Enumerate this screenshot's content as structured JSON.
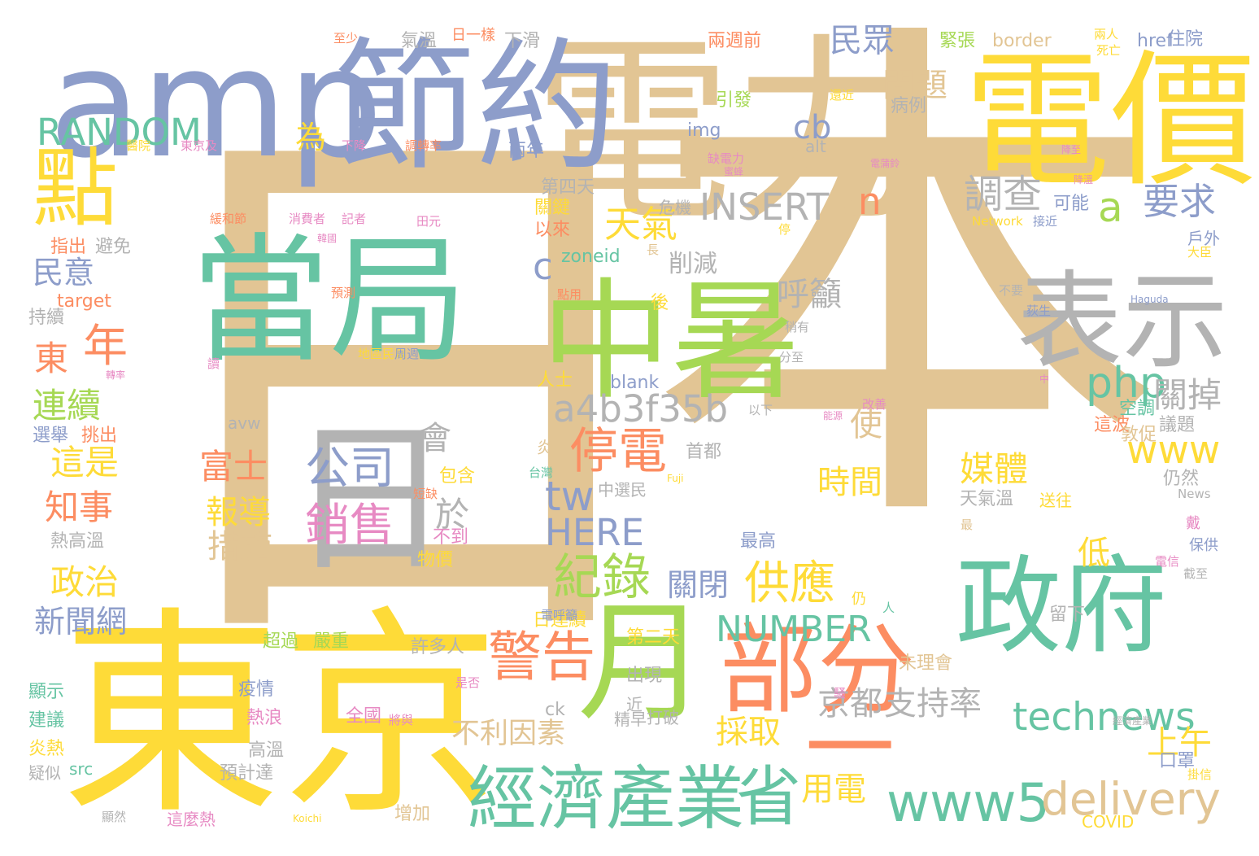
{
  "colors": {
    "tan": "#e2c594",
    "yellow": "#fedb38",
    "periwinkle": "#8d9dca",
    "teal": "#66c4a3",
    "lime": "#a6d854",
    "gray": "#b3b3b3",
    "coral": "#fc8d62",
    "pink": "#e78ac3"
  },
  "words": [
    {
      "text": "日",
      "color": "tan"
    },
    {
      "text": "本",
      "color": "tan"
    },
    {
      "text": "東京",
      "color": "yellow"
    },
    {
      "text": "電力",
      "color": "tan"
    },
    {
      "text": "amp",
      "color": "periwinkle"
    },
    {
      "text": "電價",
      "color": "yellow"
    },
    {
      "text": "節約",
      "color": "periwinkle"
    },
    {
      "text": "當局",
      "color": "teal"
    },
    {
      "text": "中暑",
      "color": "lime"
    },
    {
      "text": "表示",
      "color": "gray"
    },
    {
      "text": "政府",
      "color": "teal"
    },
    {
      "text": "月",
      "color": "lime"
    },
    {
      "text": "部分",
      "color": "coral"
    },
    {
      "text": "一",
      "color": "coral"
    },
    {
      "text": "點",
      "color": "yellow"
    },
    {
      "text": "日",
      "color": "gray"
    },
    {
      "text": "公司",
      "color": "periwinkle"
    },
    {
      "text": "銷售",
      "color": "pink"
    },
    {
      "text": "經濟產業",
      "color": "teal"
    },
    {
      "text": "省",
      "color": "teal"
    },
    {
      "text": "www5",
      "color": "teal"
    },
    {
      "text": "delivery",
      "color": "tan"
    },
    {
      "text": "technews",
      "color": "teal"
    },
    {
      "text": "警告",
      "color": "coral"
    },
    {
      "text": "停電",
      "color": "coral"
    },
    {
      "text": "紀錄",
      "color": "lime"
    },
    {
      "text": "供應",
      "color": "yellow"
    },
    {
      "text": "NUMBER",
      "color": "teal"
    },
    {
      "text": "a4b3f35b",
      "color": "gray"
    },
    {
      "text": "php",
      "color": "teal"
    },
    {
      "text": "www",
      "color": "yellow"
    },
    {
      "text": "INSERT",
      "color": "gray"
    },
    {
      "text": "RANDOM",
      "color": "teal"
    },
    {
      "text": "天氣",
      "color": "yellow"
    },
    {
      "text": "調查",
      "color": "gray"
    },
    {
      "text": "要求",
      "color": "periwinkle"
    },
    {
      "text": "民眾",
      "color": "periwinkle"
    },
    {
      "text": "問題",
      "color": "tan"
    },
    {
      "text": "cb",
      "color": "periwinkle"
    },
    {
      "text": "a",
      "color": "lime"
    },
    {
      "text": "n",
      "color": "coral"
    },
    {
      "text": "c",
      "color": "periwinkle"
    },
    {
      "text": "HERE",
      "color": "periwinkle"
    },
    {
      "text": "tw",
      "color": "periwinkle"
    },
    {
      "text": "京都",
      "color": "gray"
    },
    {
      "text": "支持率",
      "color": "gray"
    },
    {
      "text": "採取",
      "color": "yellow"
    },
    {
      "text": "用電",
      "color": "yellow"
    },
    {
      "text": "上午",
      "color": "yellow"
    },
    {
      "text": "不利因素",
      "color": "tan"
    },
    {
      "text": "關閉",
      "color": "periwinkle"
    },
    {
      "text": "媒體",
      "color": "yellow"
    },
    {
      "text": "時間",
      "color": "yellow"
    },
    {
      "text": "關掉",
      "color": "gray"
    },
    {
      "text": "使",
      "color": "tan"
    },
    {
      "text": "呼籲",
      "color": "gray"
    },
    {
      "text": "富士",
      "color": "coral"
    },
    {
      "text": "報導",
      "color": "yellow"
    },
    {
      "text": "措施",
      "color": "tan"
    },
    {
      "text": "會",
      "color": "gray"
    },
    {
      "text": "於",
      "color": "gray"
    },
    {
      "text": "民意",
      "color": "periwinkle"
    },
    {
      "text": "東",
      "color": "coral"
    },
    {
      "text": "年",
      "color": "coral"
    },
    {
      "text": "連續",
      "color": "lime"
    },
    {
      "text": "這是",
      "color": "yellow"
    },
    {
      "text": "知事",
      "color": "coral"
    },
    {
      "text": "政治",
      "color": "yellow"
    },
    {
      "text": "新聞網",
      "color": "periwinkle"
    },
    {
      "text": "為",
      "color": "yellow"
    },
    {
      "text": "低",
      "color": "yellow"
    },
    {
      "text": "削減",
      "color": "gray"
    },
    {
      "text": "zoneid",
      "color": "teal"
    },
    {
      "text": "blank",
      "color": "periwinkle"
    },
    {
      "text": "target",
      "color": "coral"
    },
    {
      "text": "img",
      "color": "periwinkle"
    },
    {
      "text": "alt",
      "color": "gray"
    },
    {
      "text": "border",
      "color": "tan"
    },
    {
      "text": "href",
      "color": "periwinkle"
    },
    {
      "text": "src",
      "color": "teal"
    },
    {
      "text": "Network",
      "color": "yellow"
    },
    {
      "text": "Haguda",
      "color": "periwinkle"
    },
    {
      "text": "News",
      "color": "gray"
    },
    {
      "text": "COVID",
      "color": "yellow"
    },
    {
      "text": "Koichi",
      "color": "yellow"
    },
    {
      "text": "Fuji",
      "color": "yellow"
    },
    {
      "text": "ck",
      "color": "gray"
    },
    {
      "text": "avw",
      "color": "gray"
    },
    {
      "text": "第四天",
      "color": "gray"
    },
    {
      "text": "第二天",
      "color": "yellow"
    },
    {
      "text": "中選民",
      "color": "gray"
    },
    {
      "text": "天氣溫",
      "color": "gray"
    },
    {
      "text": "出現",
      "color": "gray"
    },
    {
      "text": "精早",
      "color": "gray"
    },
    {
      "text": "打破",
      "color": "gray"
    },
    {
      "text": "近",
      "color": "gray"
    },
    {
      "text": "增加",
      "color": "tan"
    },
    {
      "text": "預計達",
      "color": "gray"
    },
    {
      "text": "高溫",
      "color": "gray"
    },
    {
      "text": "熱浪",
      "color": "pink"
    },
    {
      "text": "疫情",
      "color": "periwinkle"
    },
    {
      "text": "全國",
      "color": "pink"
    },
    {
      "text": "許多人",
      "color": "gray"
    },
    {
      "text": "超過",
      "color": "lime"
    },
    {
      "text": "嚴重",
      "color": "lime"
    },
    {
      "text": "日連續",
      "color": "yellow"
    },
    {
      "text": "未理會",
      "color": "tan"
    },
    {
      "text": "留下",
      "color": "gray"
    },
    {
      "text": "口罩",
      "color": "periwinkle"
    },
    {
      "text": "戶外",
      "color": "periwinkle"
    },
    {
      "text": "這波",
      "color": "coral"
    },
    {
      "text": "敦促",
      "color": "tan"
    },
    {
      "text": "空調",
      "color": "teal"
    },
    {
      "text": "仍然",
      "color": "gray"
    },
    {
      "text": "送往",
      "color": "yellow"
    },
    {
      "text": "戴",
      "color": "pink"
    },
    {
      "text": "保供",
      "color": "periwinkle"
    },
    {
      "text": "議題",
      "color": "gray"
    },
    {
      "text": "最高",
      "color": "periwinkle"
    },
    {
      "text": "首都",
      "color": "gray"
    },
    {
      "text": "人士",
      "color": "yellow"
    },
    {
      "text": "後",
      "color": "yellow"
    },
    {
      "text": "分至",
      "color": "gray"
    },
    {
      "text": "以下",
      "color": "gray"
    },
    {
      "text": "炎",
      "color": "tan"
    },
    {
      "text": "台灣",
      "color": "teal"
    },
    {
      "text": "包含",
      "color": "yellow"
    },
    {
      "text": "不到",
      "color": "pink"
    },
    {
      "text": "物價",
      "color": "yellow"
    },
    {
      "text": "熱高溫",
      "color": "gray"
    },
    {
      "text": "選舉",
      "color": "periwinkle"
    },
    {
      "text": "挑出",
      "color": "coral"
    },
    {
      "text": "持續",
      "color": "gray"
    },
    {
      "text": "指出",
      "color": "coral"
    },
    {
      "text": "避免",
      "color": "gray"
    },
    {
      "text": "顯示",
      "color": "teal"
    },
    {
      "text": "建議",
      "color": "teal"
    },
    {
      "text": "炎熱",
      "color": "yellow"
    },
    {
      "text": "疑似",
      "color": "gray"
    },
    {
      "text": "這麼熱",
      "color": "pink"
    },
    {
      "text": "顯然",
      "color": "gray"
    },
    {
      "text": "兩週前",
      "color": "coral"
    },
    {
      "text": "兩年",
      "color": "periwinkle"
    },
    {
      "text": "以來",
      "color": "coral"
    },
    {
      "text": "關鍵",
      "color": "yellow"
    },
    {
      "text": "可能",
      "color": "periwinkle"
    },
    {
      "text": "危機",
      "color": "gray"
    },
    {
      "text": "引發",
      "color": "lime"
    },
    {
      "text": "病例",
      "color": "gray"
    },
    {
      "text": "緊張",
      "color": "lime"
    },
    {
      "text": "氣溫",
      "color": "gray"
    },
    {
      "text": "日一樣",
      "color": "coral"
    },
    {
      "text": "下滑",
      "color": "gray"
    },
    {
      "text": "至少",
      "color": "coral"
    },
    {
      "text": "住院",
      "color": "periwinkle"
    },
    {
      "text": "兩人",
      "color": "yellow"
    },
    {
      "text": "死亡",
      "color": "yellow"
    },
    {
      "text": "大臣",
      "color": "yellow"
    },
    {
      "text": "醫院",
      "color": "yellow"
    },
    {
      "text": "東京及",
      "color": "pink"
    },
    {
      "text": "下降",
      "color": "pink"
    },
    {
      "text": "調轉率",
      "color": "coral"
    },
    {
      "text": "緩和節",
      "color": "coral"
    },
    {
      "text": "消費者",
      "color": "pink"
    },
    {
      "text": "記者",
      "color": "pink"
    },
    {
      "text": "地區民眾",
      "color": "yellow"
    },
    {
      "text": "周週",
      "color": "periwinkle"
    },
    {
      "text": "最",
      "color": "tan"
    },
    {
      "text": "電信",
      "color": "pink"
    },
    {
      "text": "截至",
      "color": "gray"
    },
    {
      "text": "是否",
      "color": "pink"
    },
    {
      "text": "將與",
      "color": "pink"
    },
    {
      "text": "點用",
      "color": "coral"
    },
    {
      "text": "田元",
      "color": "pink"
    },
    {
      "text": "長",
      "color": "tan"
    },
    {
      "text": "改善",
      "color": "pink"
    },
    {
      "text": "仍",
      "color": "yellow"
    },
    {
      "text": "人",
      "color": "teal"
    },
    {
      "text": "中",
      "color": "pink"
    },
    {
      "text": "荻生",
      "color": "periwinkle"
    },
    {
      "text": "不要",
      "color": "gray"
    },
    {
      "text": "讀",
      "color": "pink"
    },
    {
      "text": "能源",
      "color": "pink"
    },
    {
      "text": "電呼籲",
      "color": "periwinkle"
    },
    {
      "text": "經濟產業",
      "color": "gray"
    },
    {
      "text": "掛信",
      "color": "yellow"
    },
    {
      "text": "短缺",
      "color": "coral"
    },
    {
      "text": "接近",
      "color": "periwinkle"
    },
    {
      "text": "停",
      "color": "yellow"
    },
    {
      "text": "缺電力",
      "color": "pink"
    },
    {
      "text": "還近",
      "color": "yellow"
    },
    {
      "text": "降至",
      "color": "pink"
    },
    {
      "text": "降溫",
      "color": "pink"
    },
    {
      "text": "電蒲鈴",
      "color": "pink"
    },
    {
      "text": "蜜蜂",
      "color": "pink"
    },
    {
      "text": "韓國",
      "color": "pink"
    },
    {
      "text": "轉率",
      "color": "pink"
    },
    {
      "text": "稍有",
      "color": "gray"
    },
    {
      "text": "預測",
      "color": "coral"
    },
    {
      "text": "騷",
      "color": "pink"
    },
    {
      "text": "確",
      "color": "yellow"
    },
    {
      "text": "搶購",
      "color": "pink"
    }
  ]
}
